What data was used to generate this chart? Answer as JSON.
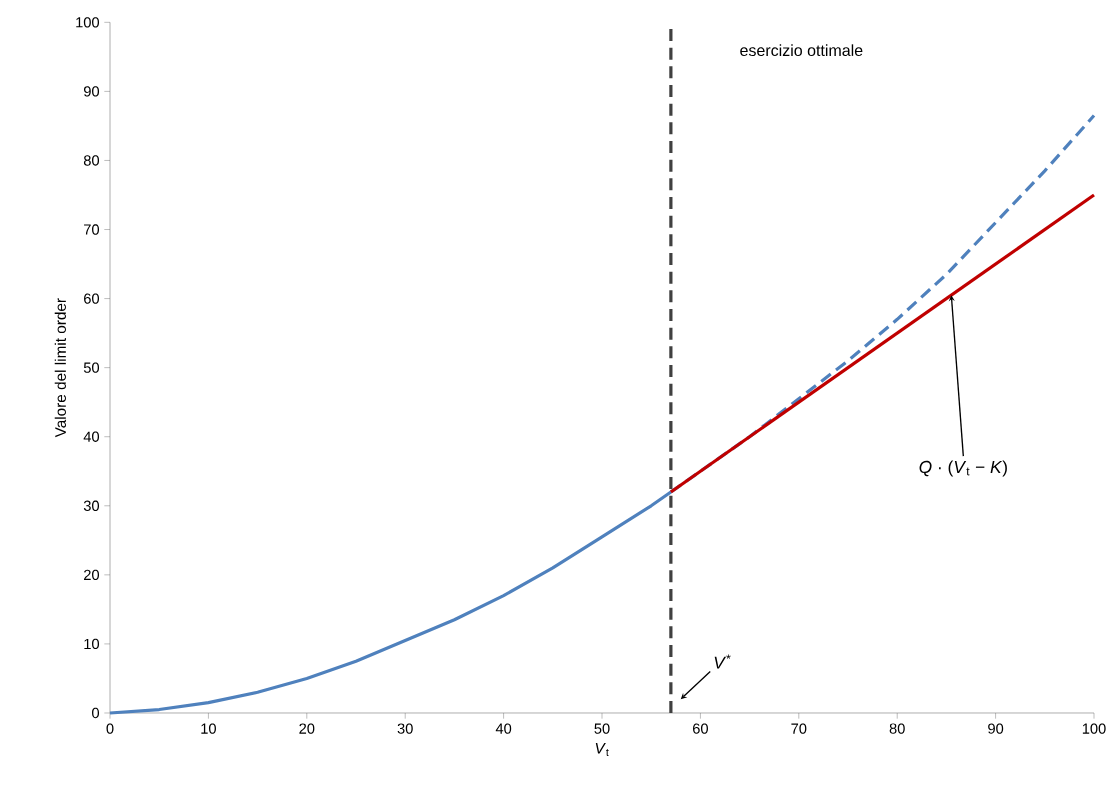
{
  "chart_data": {
    "type": "line",
    "xlabel": "*V*$_{t}$",
    "ylabel": "Valore del limit order",
    "xlim": [
      0,
      100
    ],
    "ylim": [
      0,
      100
    ],
    "xticks": [
      0,
      10,
      20,
      30,
      40,
      50,
      60,
      70,
      80,
      90,
      100
    ],
    "yticks": [
      0,
      10,
      20,
      30,
      40,
      50,
      60,
      70,
      80,
      90,
      100
    ],
    "series": [
      {
        "color": "#4f81bd",
        "line_style": "solid",
        "x": [
          0,
          5,
          10,
          15,
          20,
          25,
          30,
          35,
          40,
          45,
          50,
          55,
          57
        ],
        "values": [
          0,
          0.5,
          1.5,
          3,
          5,
          7.5,
          10.5,
          13.5,
          17,
          21,
          25.5,
          30,
          32
        ]
      },
      {
        "color": "#4f81bd",
        "line_style": "dashed",
        "x": [
          57,
          60,
          65,
          70,
          75,
          80,
          85,
          90,
          95,
          100
        ],
        "values": [
          32,
          35,
          40,
          45.5,
          51,
          57,
          63.5,
          71,
          78.5,
          86.5
        ]
      },
      {
        "color": "#c00000",
        "line_style": "solid",
        "x": [
          57,
          100
        ],
        "values": [
          32,
          75
        ]
      }
    ],
    "ref_lines": [
      {
        "axis": "x",
        "value": 57,
        "color": "#404040",
        "line_style": "dashed"
      }
    ],
    "annotations": [
      "*V*$^{*}$",
      {
        "text": "*Q* · (*V*$_{t}$ − *K*)",
        "x": 85.5,
        "y": 60.5
      },
      "esercizio ottimale"
    ]
  }
}
